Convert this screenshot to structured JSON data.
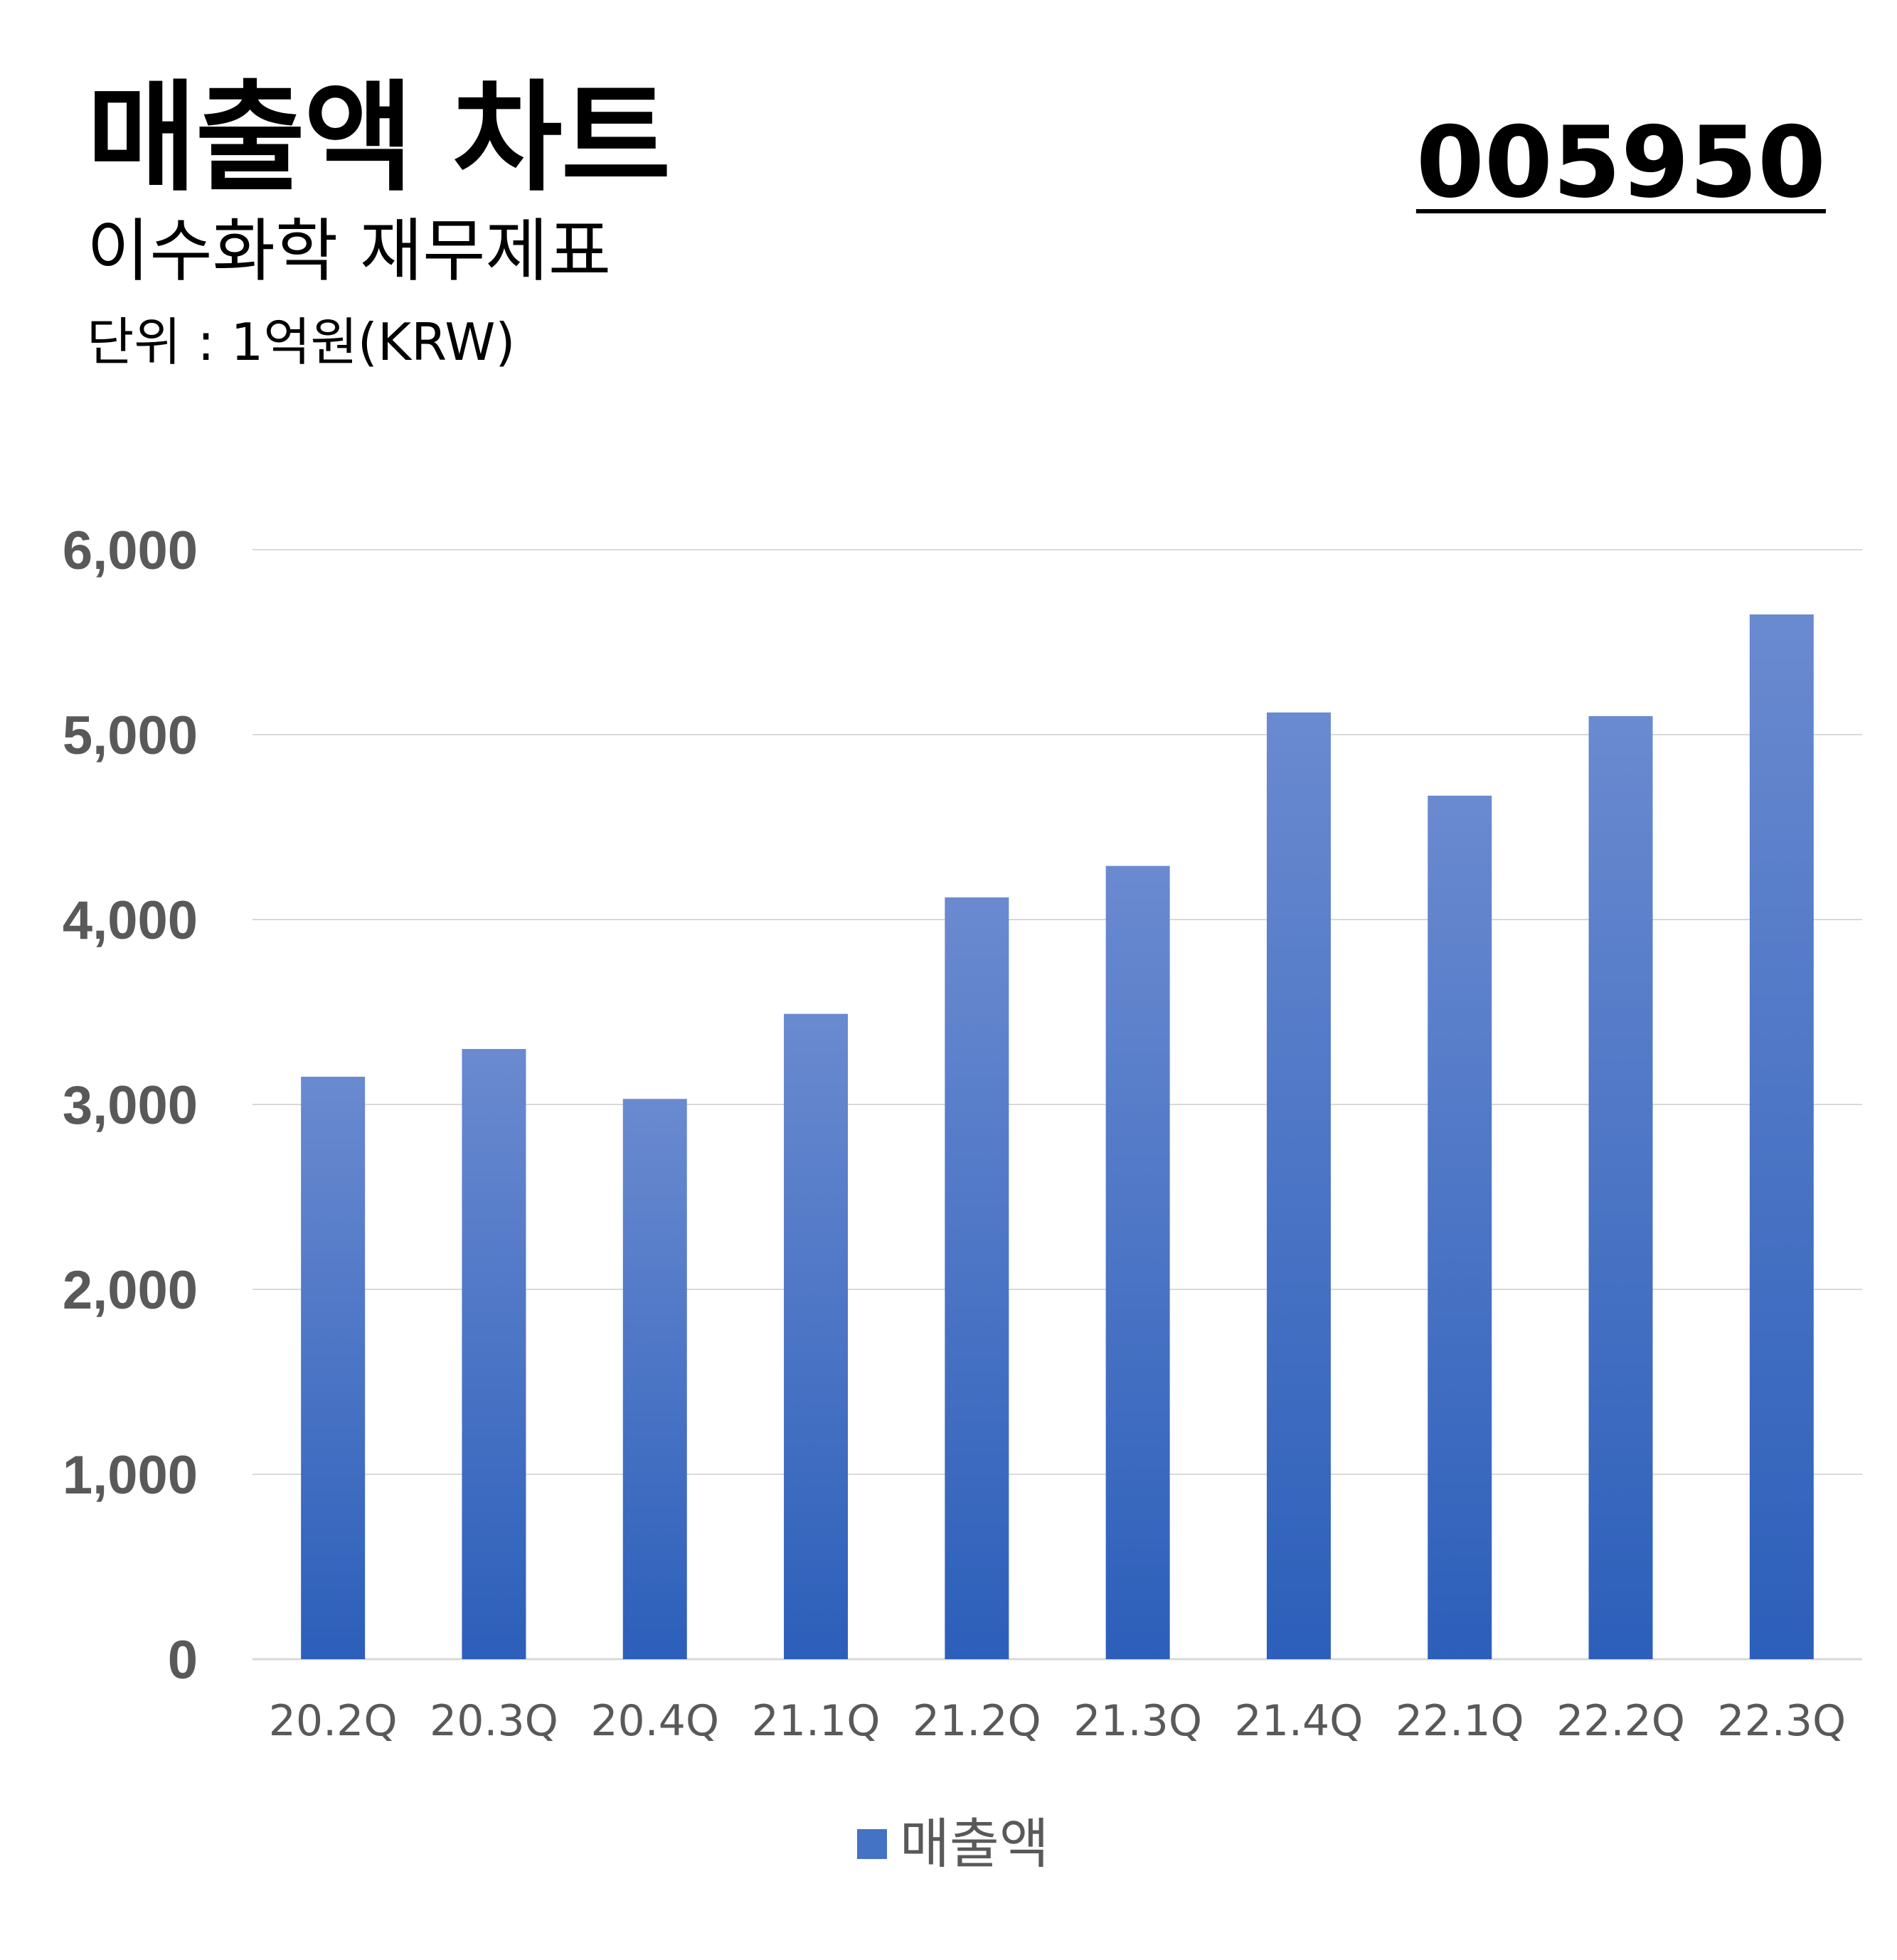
{
  "header": {
    "title": "매출액 차트",
    "subtitle": "이수화학 재무제표",
    "unit": "단위 : 1억원(KRW)",
    "ticker": "005950"
  },
  "colors": {
    "bar_top": "#6a8ad0",
    "bar_bottom": "#2c5fba",
    "grid": "#d9d9d9",
    "tick_text": "#595959",
    "legend_swatch": "#4472c4"
  },
  "chart_data": {
    "type": "bar",
    "categories": [
      "20.2Q",
      "20.3Q",
      "20.4Q",
      "21.1Q",
      "21.2Q",
      "21.3Q",
      "21.4Q",
      "22.1Q",
      "22.2Q",
      "22.3Q"
    ],
    "series": [
      {
        "name": "매출액",
        "values": [
          3150,
          3300,
          3030,
          3490,
          4120,
          4290,
          5120,
          4670,
          5100,
          5650
        ]
      }
    ],
    "yticks": [
      "0",
      "1,000",
      "2,000",
      "3,000",
      "4,000",
      "5,000",
      "6,000"
    ],
    "ylim": [
      0,
      6000
    ],
    "grid": true,
    "legend": "bottom-center",
    "xlabel": "",
    "ylabel": ""
  }
}
